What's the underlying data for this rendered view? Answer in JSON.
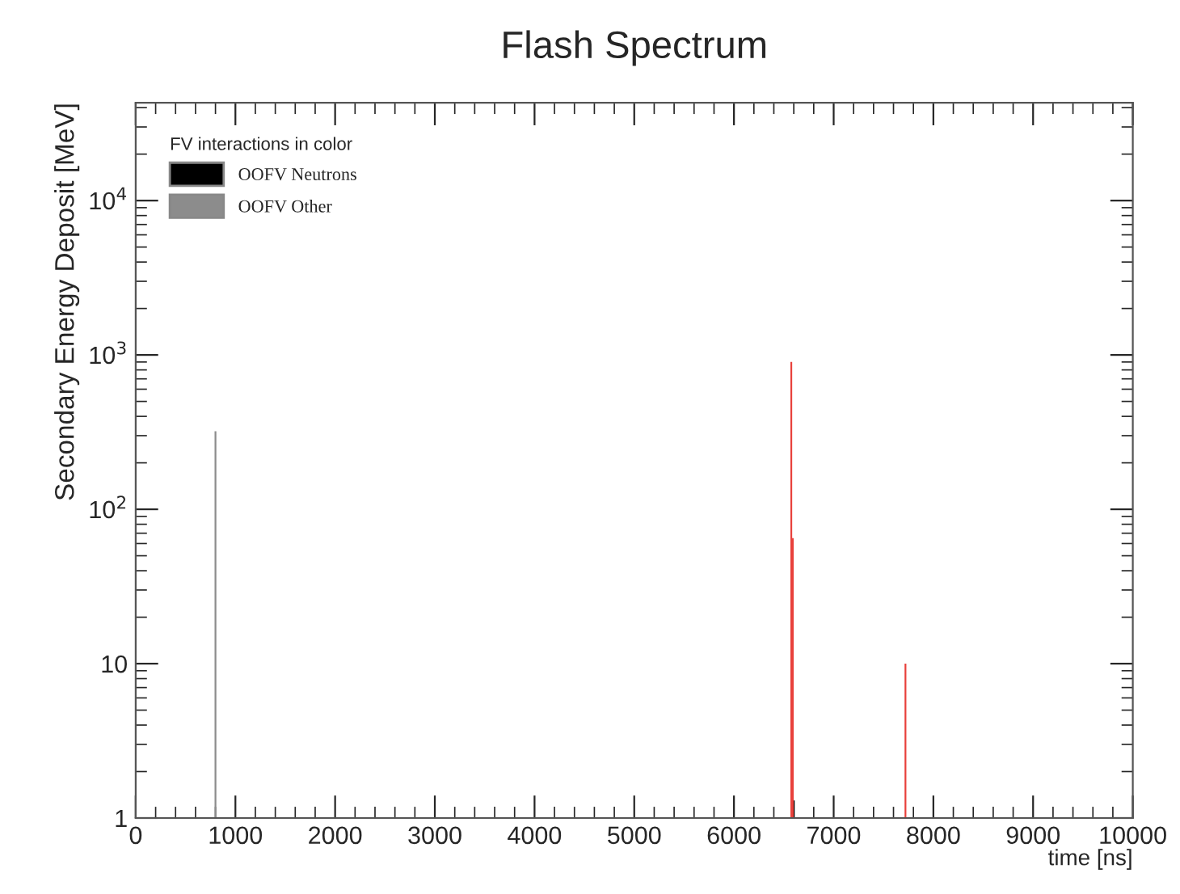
{
  "chart_data": {
    "type": "bar",
    "title": "Flash Spectrum",
    "xlabel": "time [ns]",
    "ylabel": "Secondary Energy Deposit [MeV]",
    "legend_title": "FV interactions in color",
    "series": [
      {
        "name": "OOFV Neutrons",
        "color": "#000000",
        "x": [
          6600
        ],
        "values": [
          1.3
        ]
      },
      {
        "name": "OOFV Other",
        "color": "#8c8c8c",
        "x": [
          800
        ],
        "values": [
          320
        ]
      },
      {
        "color": "#e8413c",
        "x": [
          6575,
          6590,
          7720
        ],
        "values": [
          900,
          65,
          10
        ]
      }
    ],
    "xlim": [
      0,
      10000
    ],
    "xticks": [
      0,
      1000,
      2000,
      3000,
      4000,
      5000,
      6000,
      7000,
      8000,
      9000,
      10000
    ],
    "ylim": [
      1,
      43000
    ],
    "yticks": [
      1,
      10,
      {
        "value": 100,
        "label": "10$^{2}$"
      },
      {
        "value": 1000,
        "label": "10$^{3}$"
      },
      {
        "value": 10000,
        "label": "10$^{4}$"
      }
    ],
    "log": "y",
    "grid": false,
    "legend": "top left"
  }
}
